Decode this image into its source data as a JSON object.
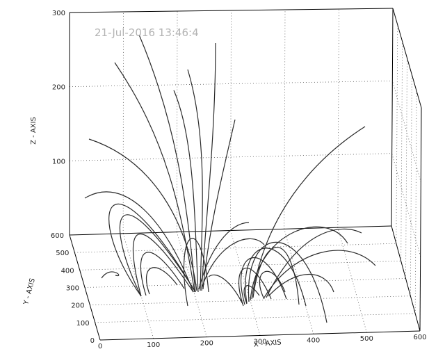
{
  "chart_data": {
    "type": "3d-line",
    "timestamp": "21-Jul-2016 13:46:4",
    "xlabel": "X - AXIS",
    "ylabel": "Y - AXIS",
    "zlabel": "Z - AXIS",
    "x_ticks": [
      "0",
      "100",
      "200",
      "300",
      "400",
      "500",
      "600"
    ],
    "y_ticks": [
      "0",
      "100",
      "200",
      "300",
      "400",
      "500",
      "600"
    ],
    "z_ticks": [
      "100",
      "200",
      "300"
    ],
    "xlim": [
      0,
      600
    ],
    "ylim": [
      0,
      600
    ],
    "zlim": [
      0,
      300
    ],
    "grid": true,
    "colors": {
      "lines": "#2a2a2a",
      "timestamp": "#b3b3b3"
    }
  }
}
